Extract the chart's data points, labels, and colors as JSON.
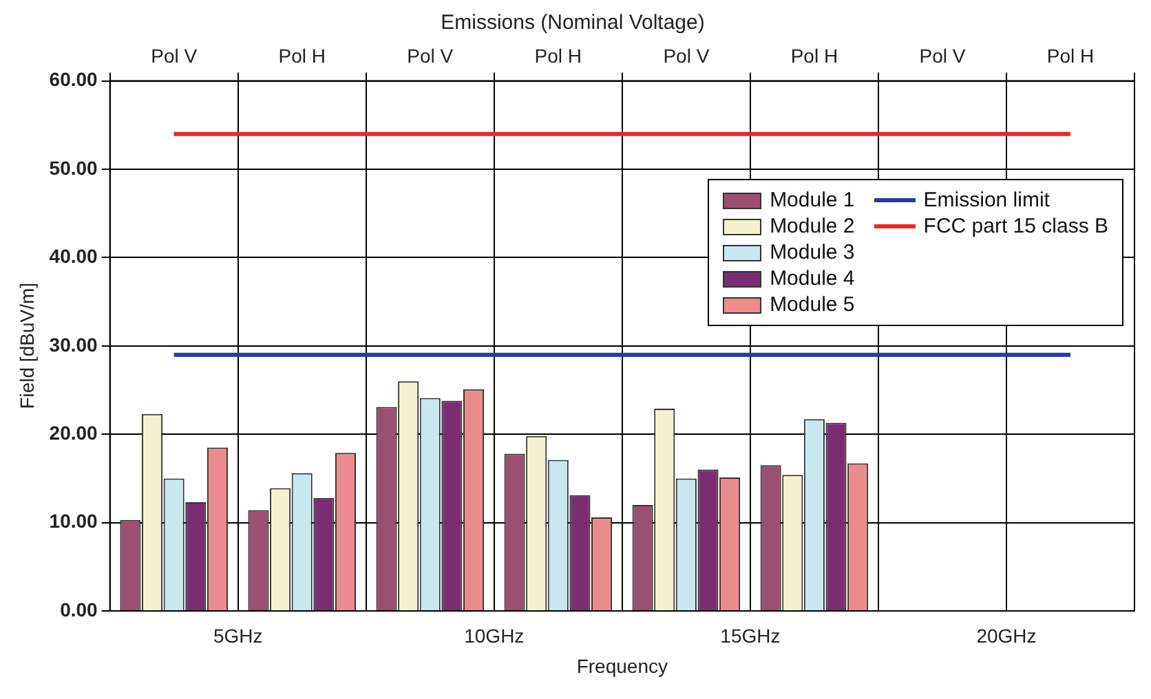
{
  "chart_data": {
    "type": "bar",
    "title": "Emissions (Nominal Voltage)",
    "xlabel": "Frequency",
    "ylabel": "Field [dBuV/m]",
    "categories": [
      "Pol V",
      "Pol H",
      "Pol V",
      "Pol H",
      "Pol V",
      "Pol H",
      "Pol V",
      "Pol H"
    ],
    "annotations": [
      "5GHz",
      "10GHz",
      "15GHz",
      "20GHz"
    ],
    "series": [
      {
        "name": "Module 1",
        "color": "#9c4f6e",
        "values": [
          10.3,
          11.4,
          23.1,
          17.8,
          12.0,
          16.5,
          null,
          null
        ]
      },
      {
        "name": "Module 2",
        "color": "#f5f2d0",
        "values": [
          22.3,
          13.9,
          26.0,
          19.8,
          22.9,
          15.4,
          null,
          null
        ]
      },
      {
        "name": "Module 3",
        "color": "#c8e8f0",
        "values": [
          15.0,
          15.6,
          24.1,
          17.1,
          15.0,
          21.7,
          null,
          null
        ]
      },
      {
        "name": "Module 4",
        "color": "#7b2d72",
        "values": [
          12.3,
          12.8,
          23.8,
          13.1,
          16.0,
          21.3,
          null,
          null
        ]
      },
      {
        "name": "Module 5",
        "color": "#ec8c8c",
        "values": [
          18.5,
          17.9,
          25.1,
          10.6,
          15.1,
          16.7,
          null,
          null
        ]
      },
      {
        "name": "Emission limit",
        "type": "line",
        "color": "#2b3a9c",
        "values": [
          29,
          29,
          29,
          29,
          29,
          29,
          29,
          29
        ]
      },
      {
        "name": "FCC part 15 class B",
        "type": "line",
        "color": "#e8282a",
        "values": [
          54,
          54,
          54,
          54,
          54,
          54,
          54,
          54
        ]
      }
    ],
    "ylim": [
      0,
      60
    ],
    "yticks": [
      {
        "value": 0,
        "label": "0.00"
      },
      {
        "value": 10,
        "label": "10.00"
      },
      {
        "value": 20,
        "label": "20.00"
      },
      {
        "value": 30,
        "label": "30.00"
      },
      {
        "value": 40,
        "label": "40.00"
      },
      {
        "value": 50,
        "label": "50.00"
      },
      {
        "value": 60,
        "label": "60.00"
      }
    ],
    "grid": true,
    "legend": "top right",
    "marker": "none",
    "line_style": "solid"
  }
}
